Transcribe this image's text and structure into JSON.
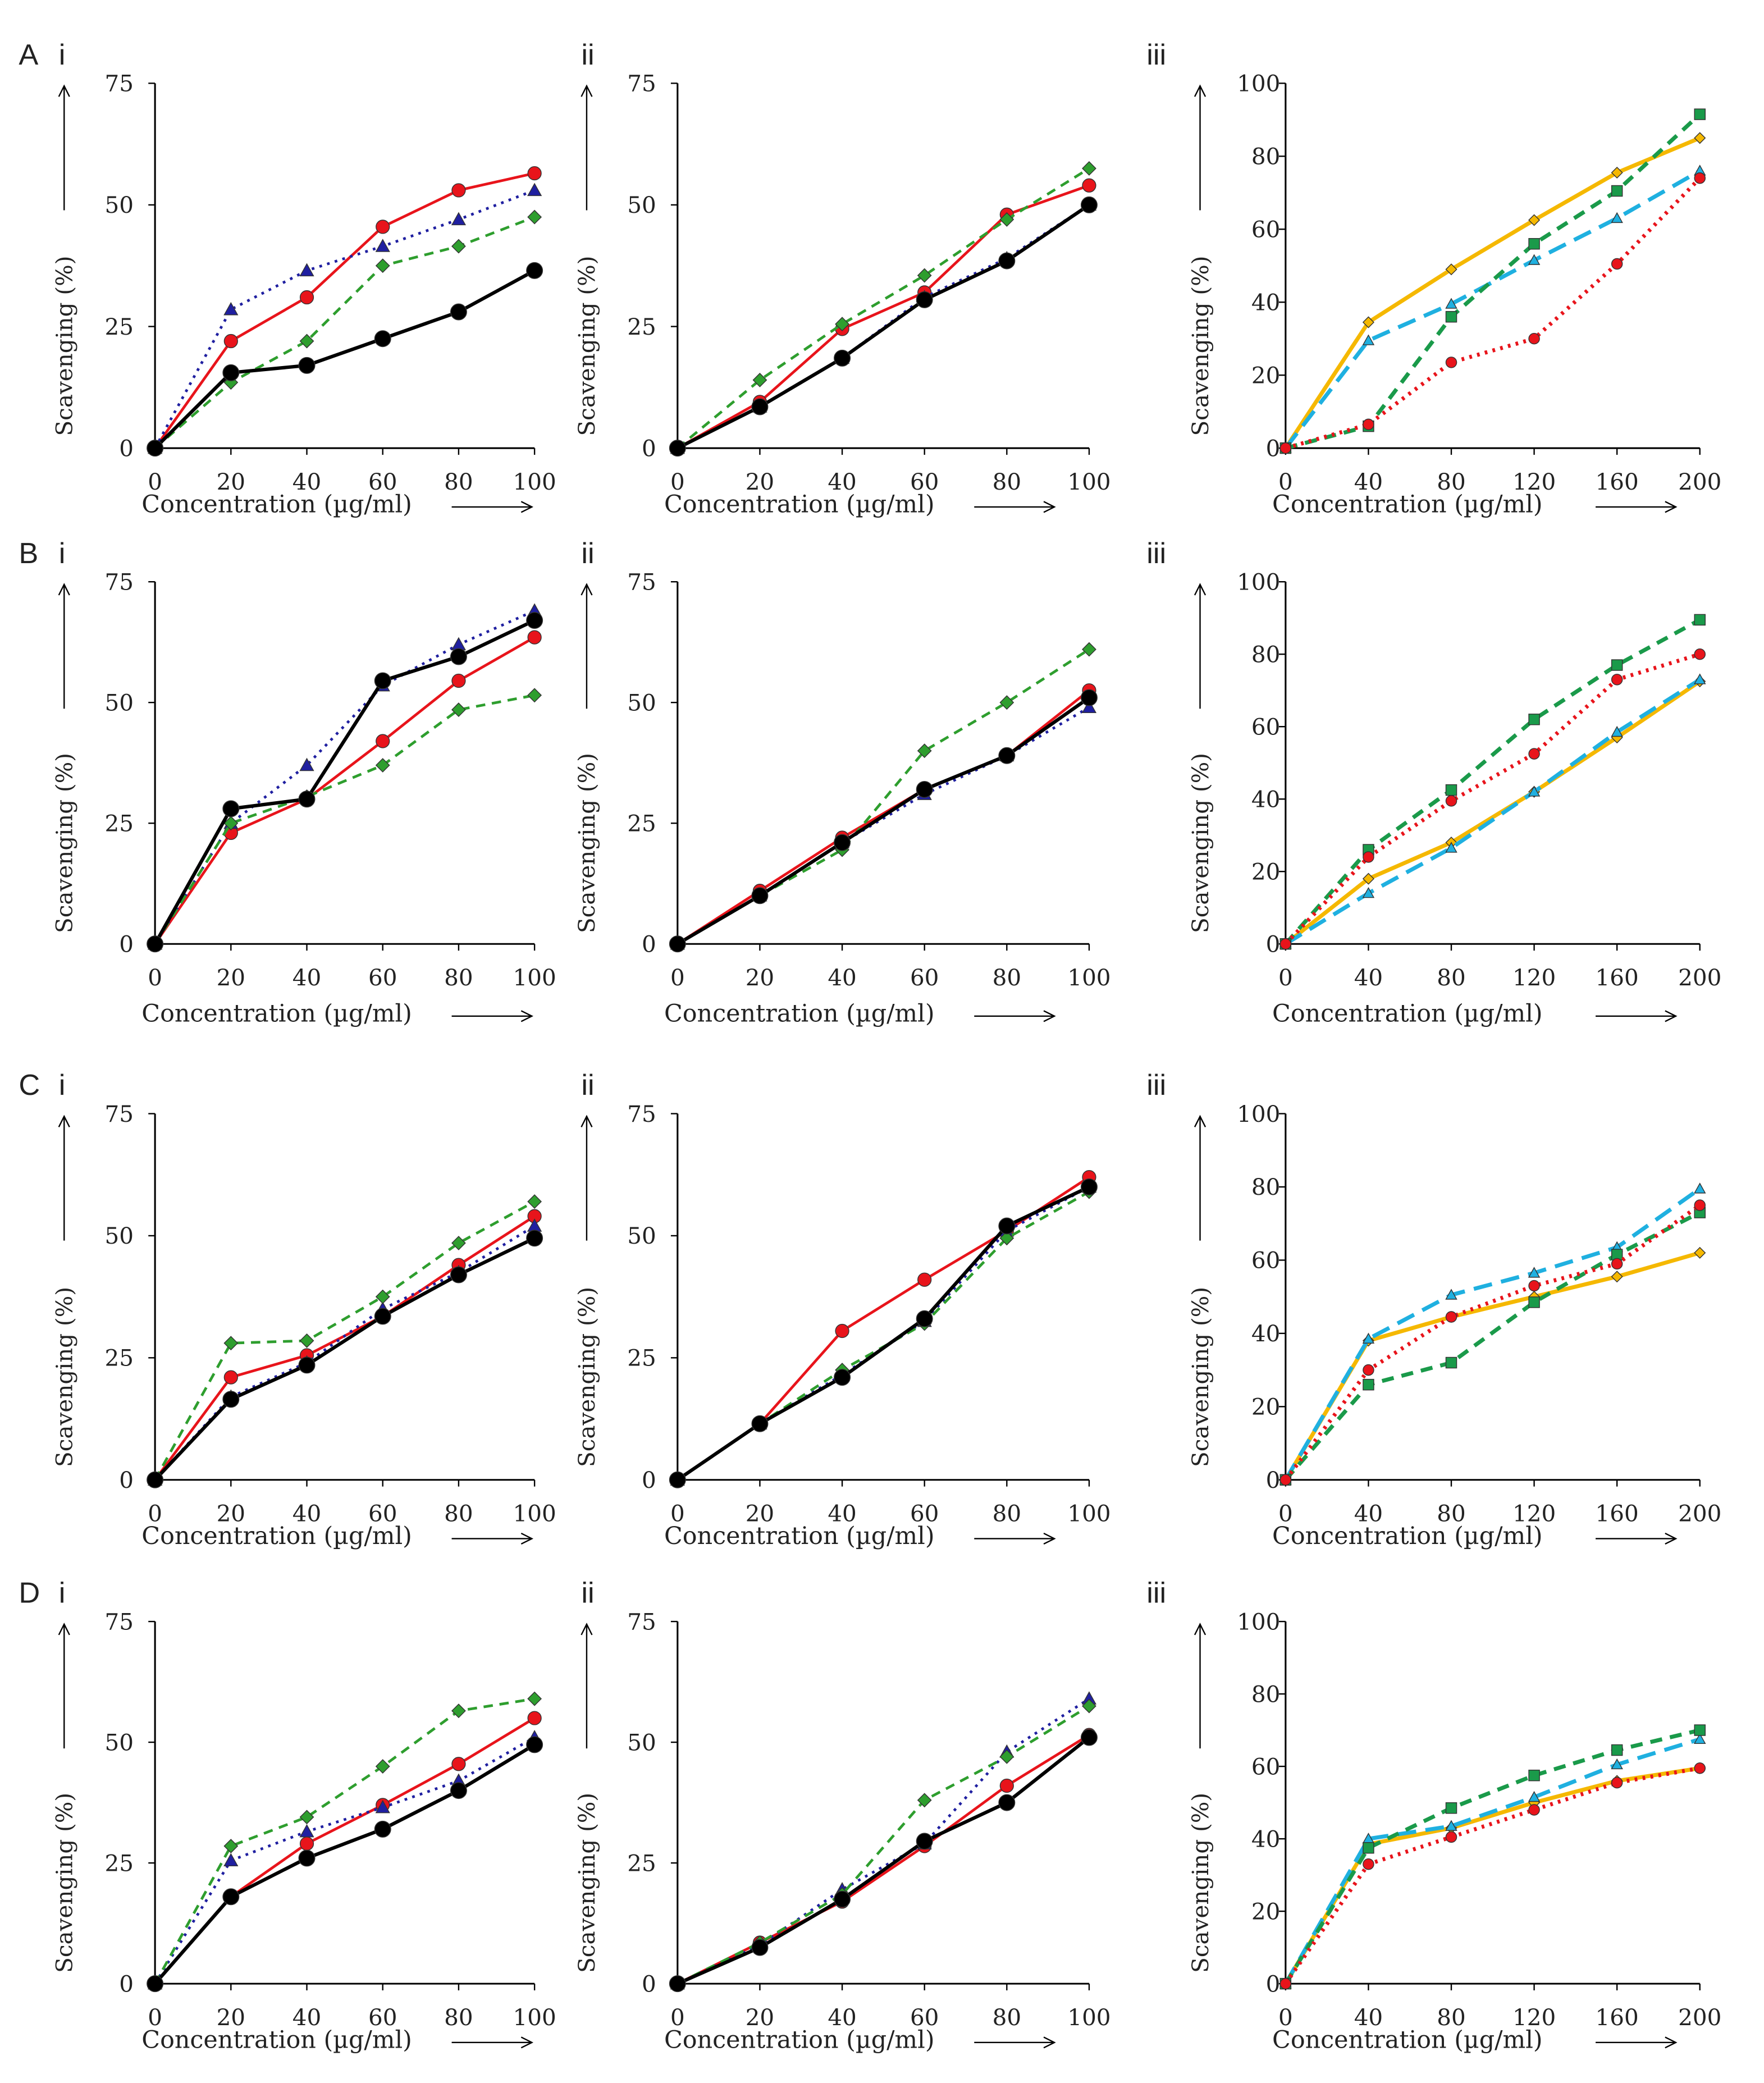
{
  "series_styles_i_ii": [
    {
      "name": "red",
      "color": "#e8141b",
      "dash": "",
      "marker": "circle"
    },
    {
      "name": "blue",
      "color": "#1f1fa0",
      "dash": "2,4",
      "marker": "triangle"
    },
    {
      "name": "green",
      "color": "#2e9e2e",
      "dash": "7,5",
      "marker": "diamond"
    },
    {
      "name": "black",
      "color": "#000000",
      "dash": "",
      "marker": "circle"
    }
  ],
  "series_styles_iii": [
    {
      "name": "orange",
      "color": "#f5b800",
      "dash": "",
      "marker": "diamond"
    },
    {
      "name": "lightblue",
      "color": "#1fb0e0",
      "dash": "14,7",
      "marker": "triangle"
    },
    {
      "name": "green",
      "color": "#1a9a4a",
      "dash": "9,6",
      "marker": "square"
    },
    {
      "name": "red",
      "color": "#e8141b",
      "dash": "2,4",
      "marker": "circle"
    }
  ],
  "chart_data": [
    {
      "panel": "A",
      "sub": "i",
      "type": "line",
      "xlabel": "Concentration (µg/ml)",
      "ylabel": "Scavenging (%)",
      "x": [
        0,
        20,
        40,
        60,
        80,
        100
      ],
      "ylim": [
        0,
        75
      ],
      "yticks": [
        0,
        25,
        50,
        75
      ],
      "series": [
        {
          "name": "red",
          "values": [
            0,
            22,
            31,
            45.5,
            53,
            56.5
          ]
        },
        {
          "name": "blue",
          "values": [
            0,
            28.5,
            36.5,
            41.5,
            47,
            53
          ]
        },
        {
          "name": "green",
          "values": [
            0,
            13.5,
            22,
            37.5,
            41.5,
            47.5
          ]
        },
        {
          "name": "black",
          "values": [
            0,
            15.5,
            17,
            22.5,
            28,
            36.5
          ]
        }
      ]
    },
    {
      "panel": "",
      "sub": "ii",
      "type": "line",
      "xlabel": "Concentration (µg/ml)",
      "ylabel": "Scavenging (%)",
      "x": [
        0,
        20,
        40,
        60,
        80,
        100
      ],
      "ylim": [
        0,
        75
      ],
      "yticks": [
        0,
        25,
        50,
        75
      ],
      "series": [
        {
          "name": "red",
          "values": [
            0,
            9.5,
            24.5,
            32,
            48,
            54
          ]
        },
        {
          "name": "blue",
          "values": [
            0,
            8.5,
            18.5,
            31,
            39,
            50
          ]
        },
        {
          "name": "green",
          "values": [
            0,
            14,
            25.5,
            35.5,
            47,
            57.5
          ]
        },
        {
          "name": "black",
          "values": [
            0,
            8.5,
            18.5,
            30.5,
            38.5,
            50
          ]
        }
      ]
    },
    {
      "panel": "",
      "sub": "iii",
      "type": "line",
      "xlabel": "Concentration (µg/ml)",
      "ylabel": "Scavenging (%)",
      "x": [
        0,
        40,
        80,
        120,
        160,
        200
      ],
      "ylim": [
        0,
        100
      ],
      "yticks": [
        0,
        20,
        40,
        60,
        80,
        100
      ],
      "series": [
        {
          "name": "orange",
          "values": [
            0,
            34.5,
            49,
            62.5,
            75.5,
            85
          ]
        },
        {
          "name": "lightblue",
          "values": [
            0,
            29.5,
            39.5,
            51.5,
            63,
            76
          ]
        },
        {
          "name": "green",
          "values": [
            0,
            6,
            36,
            56,
            70.5,
            91.5
          ]
        },
        {
          "name": "red",
          "values": [
            0,
            6.5,
            23.5,
            30,
            50.5,
            74
          ]
        }
      ]
    },
    {
      "panel": "B",
      "sub": "i",
      "type": "line",
      "xlabel": "Concentration (µg/ml)",
      "ylabel": "Scavenging (%)",
      "x": [
        0,
        20,
        40,
        60,
        80,
        100
      ],
      "ylim": [
        0,
        75
      ],
      "yticks": [
        0,
        25,
        50,
        75
      ],
      "series": [
        {
          "name": "red",
          "values": [
            0,
            23,
            30,
            42,
            54.5,
            63.5
          ]
        },
        {
          "name": "blue",
          "values": [
            0,
            25,
            37,
            53.5,
            62,
            69
          ]
        },
        {
          "name": "green",
          "values": [
            0,
            25,
            30.5,
            37,
            48.5,
            51.5
          ]
        },
        {
          "name": "black",
          "values": [
            0,
            28,
            30,
            54.5,
            59.5,
            67
          ]
        }
      ]
    },
    {
      "panel": "",
      "sub": "ii",
      "type": "line",
      "xlabel": "Concentration (µg/ml)",
      "ylabel": "Scavenging (%)",
      "x": [
        0,
        20,
        40,
        60,
        80,
        100
      ],
      "ylim": [
        0,
        75
      ],
      "yticks": [
        0,
        25,
        50,
        75
      ],
      "series": [
        {
          "name": "red",
          "values": [
            0,
            11,
            22,
            32,
            39,
            52.5
          ]
        },
        {
          "name": "blue",
          "values": [
            0,
            10,
            21,
            31,
            39,
            49
          ]
        },
        {
          "name": "green",
          "values": [
            0,
            10,
            19.5,
            40,
            50,
            61
          ]
        },
        {
          "name": "black",
          "values": [
            0,
            10,
            21,
            32,
            39,
            51
          ]
        }
      ]
    },
    {
      "panel": "",
      "sub": "iii",
      "type": "line",
      "xlabel": "Concentration (µg/ml)",
      "ylabel": "Scavenging (%)",
      "x": [
        0,
        40,
        80,
        120,
        160,
        200
      ],
      "ylim": [
        0,
        100
      ],
      "yticks": [
        0,
        20,
        40,
        60,
        80,
        100
      ],
      "series": [
        {
          "name": "orange",
          "values": [
            0,
            18,
            28,
            42,
            57,
            72.5
          ]
        },
        {
          "name": "lightblue",
          "values": [
            0,
            14,
            26.5,
            42,
            58.5,
            73
          ]
        },
        {
          "name": "green",
          "values": [
            0,
            26,
            42.5,
            62,
            77,
            89.5
          ]
        },
        {
          "name": "red",
          "values": [
            0,
            24,
            39.5,
            52.5,
            73,
            80
          ]
        }
      ]
    },
    {
      "panel": "C",
      "sub": "i",
      "type": "line",
      "xlabel": "Concentration (µg/ml)",
      "ylabel": "Scavenging (%)",
      "x": [
        0,
        20,
        40,
        60,
        80,
        100
      ],
      "ylim": [
        0,
        75
      ],
      "yticks": [
        0,
        25,
        50,
        75
      ],
      "series": [
        {
          "name": "red",
          "values": [
            0,
            21,
            25.5,
            33.5,
            44,
            54
          ]
        },
        {
          "name": "blue",
          "values": [
            0,
            17,
            24,
            35,
            42.5,
            52
          ]
        },
        {
          "name": "green",
          "values": [
            0,
            28,
            28.5,
            37.5,
            48.5,
            57
          ]
        },
        {
          "name": "black",
          "values": [
            0,
            16.5,
            23.5,
            33.5,
            42,
            49.5
          ]
        }
      ]
    },
    {
      "panel": "",
      "sub": "ii",
      "type": "line",
      "xlabel": "Concentration (µg/ml)",
      "ylabel": "Scavenging (%)",
      "x": [
        0,
        20,
        40,
        60,
        80,
        100
      ],
      "ylim": [
        0,
        75
      ],
      "yticks": [
        0,
        25,
        50,
        75
      ],
      "series": [
        {
          "name": "red",
          "values": [
            0,
            11.5,
            30.5,
            41,
            51,
            62
          ]
        },
        {
          "name": "blue",
          "values": [
            0,
            11.5,
            21.5,
            32.5,
            51,
            60
          ]
        },
        {
          "name": "green",
          "values": [
            0,
            11.5,
            22.5,
            32,
            49.5,
            59
          ]
        },
        {
          "name": "black",
          "values": [
            0,
            11.5,
            21,
            33,
            52,
            60
          ]
        }
      ]
    },
    {
      "panel": "",
      "sub": "iii",
      "type": "line",
      "xlabel": "Concentration (µg/ml)",
      "ylabel": "Scavenging (%)",
      "x": [
        0,
        40,
        80,
        120,
        160,
        200
      ],
      "ylim": [
        0,
        100
      ],
      "yticks": [
        0,
        20,
        40,
        60,
        80,
        100
      ],
      "series": [
        {
          "name": "orange",
          "values": [
            0,
            38,
            44.5,
            50,
            55.5,
            62
          ]
        },
        {
          "name": "lightblue",
          "values": [
            0,
            38.5,
            50.5,
            56.5,
            63.5,
            79.5
          ]
        },
        {
          "name": "green",
          "values": [
            0,
            26,
            32,
            48.5,
            61.5,
            73
          ]
        },
        {
          "name": "red",
          "values": [
            0,
            30,
            44.5,
            53,
            59,
            75
          ]
        }
      ]
    },
    {
      "panel": "D",
      "sub": "i",
      "type": "line",
      "xlabel": "Concentration (µg/ml)",
      "ylabel": "Scavenging (%)",
      "x": [
        0,
        20,
        40,
        60,
        80,
        100
      ],
      "ylim": [
        0,
        75
      ],
      "yticks": [
        0,
        25,
        50,
        75
      ],
      "series": [
        {
          "name": "red",
          "values": [
            0,
            18,
            29,
            37,
            45.5,
            55
          ]
        },
        {
          "name": "blue",
          "values": [
            0,
            25.5,
            31.5,
            36.5,
            42,
            51
          ]
        },
        {
          "name": "green",
          "values": [
            0,
            28.5,
            34.5,
            45,
            56.5,
            59
          ]
        },
        {
          "name": "black",
          "values": [
            0,
            18,
            26,
            32,
            40,
            49.5
          ]
        }
      ]
    },
    {
      "panel": "",
      "sub": "ii",
      "type": "line",
      "xlabel": "Concentration (µg/ml)",
      "ylabel": "Scavenging (%)",
      "x": [
        0,
        20,
        40,
        60,
        80,
        100
      ],
      "ylim": [
        0,
        75
      ],
      "yticks": [
        0,
        25,
        50,
        75
      ],
      "series": [
        {
          "name": "red",
          "values": [
            0,
            8.5,
            17,
            28.5,
            41,
            51.5
          ]
        },
        {
          "name": "blue",
          "values": [
            0,
            8,
            19.5,
            29,
            48,
            59
          ]
        },
        {
          "name": "green",
          "values": [
            0,
            8.5,
            18.5,
            38,
            47,
            57.5
          ]
        },
        {
          "name": "black",
          "values": [
            0,
            7.5,
            17.5,
            29.5,
            37.5,
            51
          ]
        }
      ]
    },
    {
      "panel": "",
      "sub": "iii",
      "type": "line",
      "xlabel": "Concentration (µg/ml)",
      "ylabel": "Scavenging (%)",
      "x": [
        0,
        40,
        80,
        120,
        160,
        200
      ],
      "ylim": [
        0,
        100
      ],
      "yticks": [
        0,
        20,
        40,
        60,
        80,
        100
      ],
      "series": [
        {
          "name": "orange",
          "values": [
            0,
            38.5,
            43,
            50,
            56,
            59.5
          ]
        },
        {
          "name": "lightblue",
          "values": [
            0,
            40,
            43.5,
            51.5,
            60.5,
            67.5
          ]
        },
        {
          "name": "green",
          "values": [
            0,
            37.5,
            48.5,
            57.5,
            64.5,
            70
          ]
        },
        {
          "name": "red",
          "values": [
            0,
            33,
            40.5,
            48,
            55.5,
            59.5
          ]
        }
      ]
    }
  ]
}
